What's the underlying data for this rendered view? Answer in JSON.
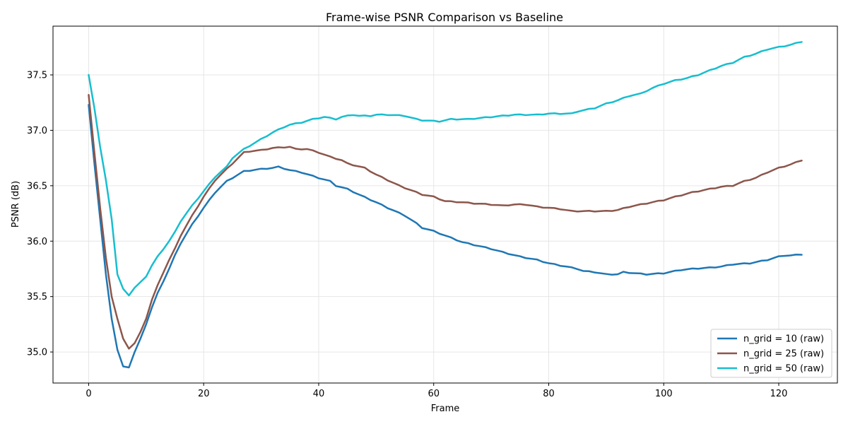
{
  "chart_data": {
    "type": "line",
    "title": "Frame-wise PSNR Comparison vs Baseline",
    "xlabel": "Frame",
    "ylabel": "PSNR (dB)",
    "xlim": [
      -6.2,
      130.2
    ],
    "ylim": [
      34.72,
      37.94
    ],
    "xticks": [
      0,
      20,
      40,
      60,
      80,
      100,
      120
    ],
    "yticks": [
      35.0,
      35.5,
      36.0,
      36.5,
      37.0,
      37.5
    ],
    "ytick_labels": [
      "35.0",
      "35.5",
      "36.0",
      "36.5",
      "37.0",
      "37.5"
    ],
    "grid": true,
    "legend_position": "bottom-right",
    "series": [
      {
        "name": "n_grid = 10 (raw)",
        "color": "#1f77b4",
        "keyframes": [
          [
            0,
            37.23
          ],
          [
            1,
            36.7
          ],
          [
            2,
            36.2
          ],
          [
            3,
            35.7
          ],
          [
            4,
            35.3
          ],
          [
            5,
            35.02
          ],
          [
            6,
            34.87
          ],
          [
            7,
            34.86
          ],
          [
            8,
            35.0
          ],
          [
            9,
            35.12
          ],
          [
            10,
            35.25
          ],
          [
            11,
            35.4
          ],
          [
            12,
            35.53
          ],
          [
            13,
            35.64
          ],
          [
            14,
            35.75
          ],
          [
            15,
            35.87
          ],
          [
            16,
            35.98
          ],
          [
            18,
            36.15
          ],
          [
            20,
            36.3
          ],
          [
            22,
            36.44
          ],
          [
            24,
            36.54
          ],
          [
            26,
            36.6
          ],
          [
            27,
            36.63
          ],
          [
            30,
            36.65
          ],
          [
            32,
            36.66
          ],
          [
            33,
            36.67
          ],
          [
            35,
            36.64
          ],
          [
            37,
            36.62
          ],
          [
            40,
            36.57
          ],
          [
            42,
            36.54
          ],
          [
            43,
            36.5
          ],
          [
            45,
            36.47
          ],
          [
            47,
            36.42
          ],
          [
            50,
            36.35
          ],
          [
            52,
            36.3
          ],
          [
            55,
            36.23
          ],
          [
            57,
            36.16
          ],
          [
            58,
            36.12
          ],
          [
            60,
            36.09
          ],
          [
            63,
            36.03
          ],
          [
            65,
            35.99
          ],
          [
            70,
            35.93
          ],
          [
            72,
            35.9
          ],
          [
            75,
            35.86
          ],
          [
            78,
            35.83
          ],
          [
            80,
            35.8
          ],
          [
            83,
            35.77
          ],
          [
            85,
            35.75
          ],
          [
            86,
            35.73
          ],
          [
            88,
            35.72
          ],
          [
            90,
            35.7
          ],
          [
            92,
            35.7
          ],
          [
            93,
            35.72
          ],
          [
            97,
            35.7
          ],
          [
            100,
            35.71
          ],
          [
            103,
            35.74
          ],
          [
            105,
            35.75
          ],
          [
            108,
            35.76
          ],
          [
            110,
            35.77
          ],
          [
            112,
            35.79
          ],
          [
            115,
            35.8
          ],
          [
            118,
            35.83
          ],
          [
            120,
            35.86
          ],
          [
            121,
            35.87
          ],
          [
            122,
            35.87
          ],
          [
            124,
            35.88
          ]
        ]
      },
      {
        "name": "n_grid = 25 (raw)",
        "color": "#8c564b",
        "keyframes": [
          [
            0,
            37.32
          ],
          [
            1,
            36.8
          ],
          [
            2,
            36.3
          ],
          [
            3,
            35.85
          ],
          [
            4,
            35.5
          ],
          [
            5,
            35.3
          ],
          [
            6,
            35.12
          ],
          [
            7,
            35.03
          ],
          [
            8,
            35.08
          ],
          [
            9,
            35.18
          ],
          [
            10,
            35.3
          ],
          [
            11,
            35.47
          ],
          [
            12,
            35.6
          ],
          [
            13,
            35.72
          ],
          [
            14,
            35.83
          ],
          [
            15,
            35.93
          ],
          [
            16,
            36.05
          ],
          [
            18,
            36.23
          ],
          [
            20,
            36.4
          ],
          [
            22,
            36.55
          ],
          [
            24,
            36.65
          ],
          [
            26,
            36.75
          ],
          [
            27,
            36.8
          ],
          [
            28,
            36.81
          ],
          [
            30,
            36.82
          ],
          [
            32,
            36.84
          ],
          [
            35,
            36.85
          ],
          [
            36,
            36.83
          ],
          [
            38,
            36.83
          ],
          [
            40,
            36.8
          ],
          [
            42,
            36.76
          ],
          [
            44,
            36.73
          ],
          [
            45,
            36.7
          ],
          [
            48,
            36.66
          ],
          [
            50,
            36.6
          ],
          [
            52,
            36.55
          ],
          [
            54,
            36.5
          ],
          [
            56,
            36.46
          ],
          [
            58,
            36.42
          ],
          [
            60,
            36.4
          ],
          [
            62,
            36.36
          ],
          [
            65,
            36.35
          ],
          [
            67,
            36.34
          ],
          [
            70,
            36.33
          ],
          [
            72,
            36.32
          ],
          [
            74,
            36.33
          ],
          [
            76,
            36.33
          ],
          [
            78,
            36.31
          ],
          [
            80,
            36.3
          ],
          [
            82,
            36.29
          ],
          [
            84,
            36.27
          ],
          [
            86,
            36.27
          ],
          [
            88,
            36.27
          ],
          [
            90,
            36.27
          ],
          [
            92,
            36.28
          ],
          [
            94,
            36.31
          ],
          [
            96,
            36.33
          ],
          [
            98,
            36.35
          ],
          [
            100,
            36.37
          ],
          [
            102,
            36.4
          ],
          [
            105,
            36.44
          ],
          [
            108,
            36.47
          ],
          [
            110,
            36.49
          ],
          [
            112,
            36.5
          ],
          [
            114,
            36.54
          ],
          [
            116,
            36.57
          ],
          [
            118,
            36.62
          ],
          [
            120,
            36.66
          ],
          [
            122,
            36.69
          ],
          [
            124,
            36.73
          ]
        ]
      },
      {
        "name": "n_grid = 50 (raw)",
        "color": "#17becf",
        "keyframes": [
          [
            0,
            37.5
          ],
          [
            1,
            37.2
          ],
          [
            2,
            36.85
          ],
          [
            3,
            36.55
          ],
          [
            4,
            36.2
          ],
          [
            5,
            35.7
          ],
          [
            6,
            35.57
          ],
          [
            7,
            35.51
          ],
          [
            8,
            35.58
          ],
          [
            9,
            35.63
          ],
          [
            10,
            35.68
          ],
          [
            11,
            35.78
          ],
          [
            12,
            35.86
          ],
          [
            14,
            36.0
          ],
          [
            15,
            36.08
          ],
          [
            16,
            36.18
          ],
          [
            18,
            36.32
          ],
          [
            20,
            36.45
          ],
          [
            22,
            36.58
          ],
          [
            24,
            36.67
          ],
          [
            25,
            36.75
          ],
          [
            27,
            36.83
          ],
          [
            30,
            36.92
          ],
          [
            32,
            36.98
          ],
          [
            34,
            37.03
          ],
          [
            35,
            37.05
          ],
          [
            37,
            37.07
          ],
          [
            39,
            37.1
          ],
          [
            41,
            37.12
          ],
          [
            43,
            37.1
          ],
          [
            44,
            37.12
          ],
          [
            46,
            37.14
          ],
          [
            47,
            37.13
          ],
          [
            49,
            37.13
          ],
          [
            50,
            37.14
          ],
          [
            52,
            37.14
          ],
          [
            55,
            37.13
          ],
          [
            57,
            37.1
          ],
          [
            58,
            37.09
          ],
          [
            61,
            37.08
          ],
          [
            63,
            37.1
          ],
          [
            66,
            37.1
          ],
          [
            68,
            37.11
          ],
          [
            70,
            37.12
          ],
          [
            72,
            37.13
          ],
          [
            74,
            37.14
          ],
          [
            76,
            37.14
          ],
          [
            78,
            37.14
          ],
          [
            80,
            37.15
          ],
          [
            82,
            37.15
          ],
          [
            84,
            37.15
          ],
          [
            85,
            37.17
          ],
          [
            88,
            37.2
          ],
          [
            90,
            37.24
          ],
          [
            92,
            37.27
          ],
          [
            94,
            37.31
          ],
          [
            96,
            37.33
          ],
          [
            98,
            37.38
          ],
          [
            100,
            37.42
          ],
          [
            102,
            37.45
          ],
          [
            104,
            37.47
          ],
          [
            106,
            37.5
          ],
          [
            108,
            37.54
          ],
          [
            110,
            37.58
          ],
          [
            112,
            37.61
          ],
          [
            114,
            37.66
          ],
          [
            116,
            37.69
          ],
          [
            118,
            37.73
          ],
          [
            120,
            37.75
          ],
          [
            122,
            37.77
          ],
          [
            124,
            37.8
          ]
        ]
      }
    ]
  }
}
